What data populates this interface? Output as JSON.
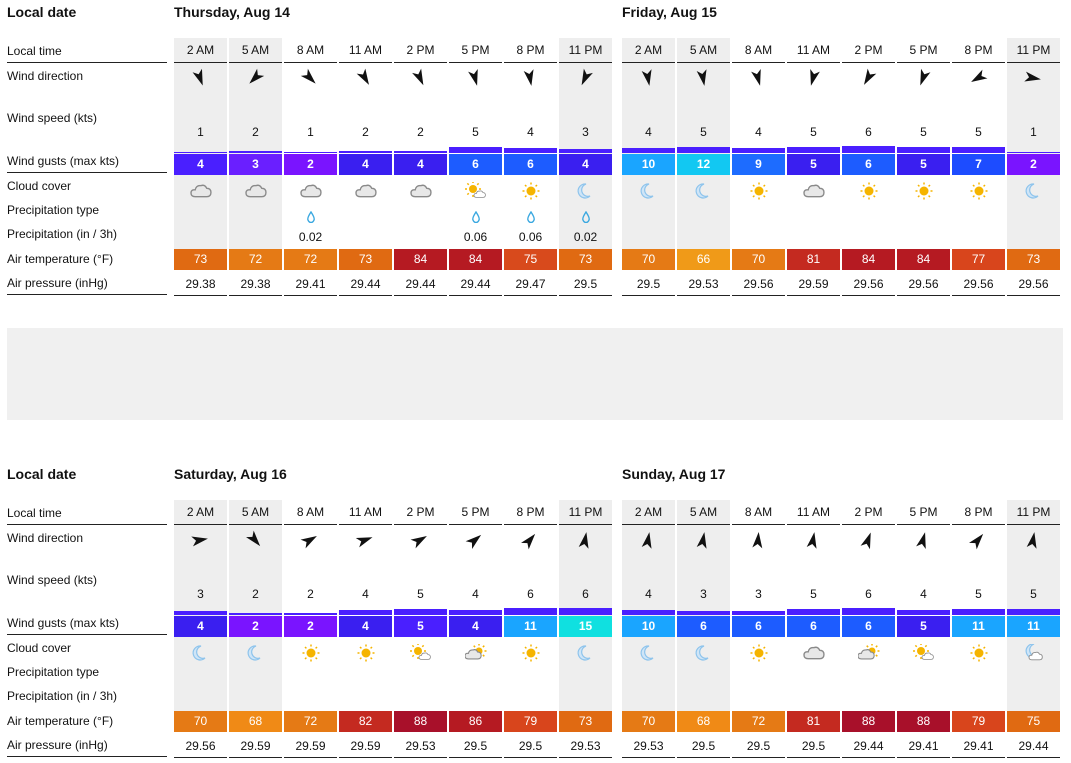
{
  "labels": {
    "local_date": "Local date",
    "local_time": "Local time",
    "wind_direction": "Wind direction",
    "wind_speed": "Wind speed (kts)",
    "wind_gusts": "Wind gusts (max kts)",
    "cloud_cover": "Cloud cover",
    "precip_type": "Precipitation type",
    "precip": "Precipitation (in / 3h)",
    "air_temp": "Air temperature (°F)",
    "air_pressure": "Air pressure (inHg)"
  },
  "times": [
    "2 AM",
    "5 AM",
    "8 AM",
    "11 AM",
    "2 PM",
    "5 PM",
    "8 PM",
    "11 PM"
  ],
  "days": [
    {
      "title": "Thursday, Aug 14",
      "speeds": [
        "1",
        "2",
        "1",
        "2",
        "2",
        "5",
        "4",
        "3"
      ],
      "gusts": [
        "4",
        "3",
        "2",
        "4",
        "4",
        "6",
        "6",
        "4"
      ],
      "gust_colors": [
        "#4a1fff",
        "#6a1fff",
        "#7a14ff",
        "#3a1ff0",
        "#3a1ff0",
        "#1d5cff",
        "#1d5cff",
        "#3a1ff0"
      ],
      "dirs": [
        -20,
        45,
        -45,
        -30,
        -25,
        -15,
        -10,
        25
      ],
      "clouds": [
        "cloud",
        "cloud",
        "cloud",
        "cloud",
        "cloud",
        "sun-cloud",
        "sun",
        "moon"
      ],
      "precip_type": [
        false,
        false,
        true,
        false,
        false,
        true,
        true,
        true
      ],
      "precip": [
        "",
        "",
        "0.02",
        "",
        "",
        "0.06",
        "0.06",
        "0.02"
      ],
      "temps": [
        "73",
        "72",
        "72",
        "73",
        "84",
        "84",
        "75",
        "73"
      ],
      "temp_colors": [
        "#e06a12",
        "#e57a15",
        "#e57a15",
        "#e06a12",
        "#b51a22",
        "#b51a22",
        "#d84a1c",
        "#e06a12"
      ],
      "pressure": [
        "29.38",
        "29.38",
        "29.41",
        "29.44",
        "29.44",
        "29.44",
        "29.47",
        "29.5"
      ]
    },
    {
      "title": "Friday, Aug 15",
      "speeds": [
        "4",
        "5",
        "4",
        "5",
        "6",
        "5",
        "5",
        "1"
      ],
      "gusts": [
        "10",
        "12",
        "9",
        "5",
        "6",
        "5",
        "7",
        "2"
      ],
      "gust_colors": [
        "#1aa5ff",
        "#12c8f2",
        "#1d6cff",
        "#3a1ff0",
        "#1d5cff",
        "#3a1ff0",
        "#1d4cff",
        "#7a14ff"
      ],
      "dirs": [
        -10,
        -10,
        -15,
        15,
        30,
        20,
        60,
        -80
      ],
      "clouds": [
        "moon",
        "moon",
        "sun",
        "cloud",
        "sun",
        "sun",
        "sun",
        "moon"
      ],
      "precip_type": [
        false,
        false,
        false,
        false,
        false,
        false,
        false,
        false
      ],
      "precip": [
        "",
        "",
        "",
        "",
        "",
        "",
        "",
        ""
      ],
      "temps": [
        "70",
        "66",
        "70",
        "81",
        "84",
        "84",
        "77",
        "73"
      ],
      "temp_colors": [
        "#e57a15",
        "#f09a18",
        "#e57a15",
        "#c42a20",
        "#b51a22",
        "#b51a22",
        "#d8451c",
        "#e06a12"
      ],
      "pressure": [
        "29.5",
        "29.53",
        "29.56",
        "29.59",
        "29.56",
        "29.56",
        "29.56",
        "29.56"
      ]
    },
    {
      "title": "Saturday, Aug 16",
      "speeds": [
        "3",
        "2",
        "2",
        "4",
        "5",
        "4",
        "6",
        "6"
      ],
      "gusts": [
        "4",
        "2",
        "2",
        "4",
        "5",
        "4",
        "11",
        "15"
      ],
      "gust_colors": [
        "#3a1ff0",
        "#7a14ff",
        "#7a14ff",
        "#3a1ff0",
        "#4a1fff",
        "#3a1ff0",
        "#1aa5ff",
        "#10e0e0"
      ],
      "dirs": [
        -100,
        -40,
        -120,
        -110,
        -120,
        -130,
        -140,
        -170
      ],
      "clouds": [
        "moon",
        "moon",
        "sun",
        "sun",
        "sun-cloud",
        "cloud-sun",
        "sun",
        "moon"
      ],
      "precip_type": [
        false,
        false,
        false,
        false,
        false,
        false,
        false,
        false
      ],
      "precip": [
        "",
        "",
        "",
        "",
        "",
        "",
        "",
        ""
      ],
      "temps": [
        "70",
        "68",
        "72",
        "82",
        "88",
        "86",
        "79",
        "73"
      ],
      "temp_colors": [
        "#e57a15",
        "#f08a16",
        "#e57a15",
        "#c42a20",
        "#a8102a",
        "#b51a22",
        "#d8451c",
        "#e06a12"
      ],
      "pressure": [
        "29.56",
        "29.59",
        "29.59",
        "29.59",
        "29.53",
        "29.5",
        "29.5",
        "29.53"
      ]
    },
    {
      "title": "Sunday, Aug 17",
      "speeds": [
        "4",
        "3",
        "3",
        "5",
        "6",
        "4",
        "5",
        "5"
      ],
      "gusts": [
        "10",
        "6",
        "6",
        "6",
        "6",
        "5",
        "11",
        "11"
      ],
      "gust_colors": [
        "#1aa5ff",
        "#1d5cff",
        "#1d5cff",
        "#1d5cff",
        "#1d5cff",
        "#3a1ff0",
        "#1aa5ff",
        "#1aa5ff"
      ],
      "dirs": [
        -170,
        -170,
        -175,
        -170,
        -160,
        -165,
        -140,
        -170
      ],
      "clouds": [
        "moon",
        "moon",
        "sun",
        "cloud",
        "cloud-sun",
        "sun-cloud",
        "sun",
        "moon-cloud"
      ],
      "precip_type": [
        false,
        false,
        false,
        false,
        false,
        false,
        false,
        false
      ],
      "precip": [
        "",
        "",
        "",
        "",
        "",
        "",
        "",
        ""
      ],
      "temps": [
        "70",
        "68",
        "72",
        "81",
        "88",
        "88",
        "79",
        "75"
      ],
      "temp_colors": [
        "#e57a15",
        "#f08a16",
        "#e57a15",
        "#c42a20",
        "#a8102a",
        "#a8102a",
        "#d8451c",
        "#e06a12"
      ],
      "pressure": [
        "29.53",
        "29.5",
        "29.5",
        "29.5",
        "29.44",
        "29.41",
        "29.41",
        "29.44"
      ]
    }
  ],
  "colors": {
    "speed_bar": "#4a1fff",
    "drop": "#3aa8e0",
    "sun": "#f5b400",
    "cloud": "#9a9a9a",
    "moon": "#8ec4ec"
  }
}
